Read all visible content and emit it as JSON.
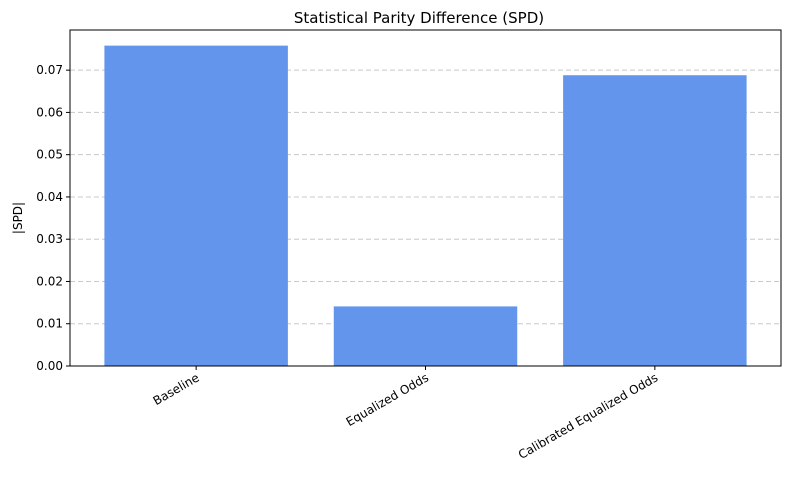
{
  "chart_data": {
    "type": "bar",
    "title": "Statistical Parity Difference (SPD)",
    "xlabel": "",
    "ylabel": "|SPD|",
    "categories": [
      "Baseline",
      "Equalized Odds",
      "Calibrated Equalized Odds"
    ],
    "values": [
      0.0758,
      0.0141,
      0.0688
    ],
    "ylim": [
      0,
      0.0795
    ],
    "yticks": [
      "0.00",
      "0.01",
      "0.02",
      "0.03",
      "0.04",
      "0.05",
      "0.06",
      "0.07"
    ],
    "grid": "y-dashed",
    "bar_color": "#6495ED",
    "grid_color": "#c8c8c8"
  }
}
